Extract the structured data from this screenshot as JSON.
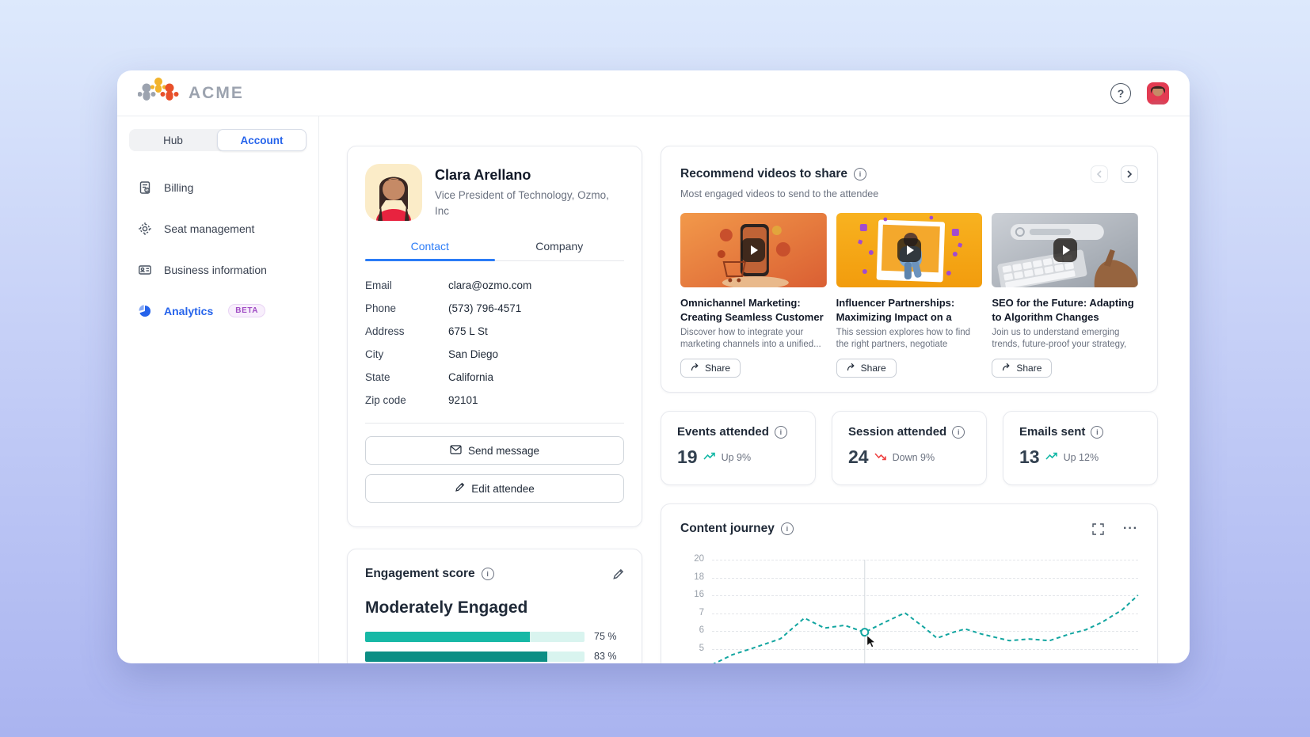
{
  "app": {
    "brand": "ACME"
  },
  "header": {
    "help_label": "?"
  },
  "sidebar": {
    "segments": [
      {
        "label": "Hub",
        "active": false
      },
      {
        "label": "Account",
        "active": true
      }
    ],
    "items": [
      {
        "label": "Billing",
        "icon": "receipt-icon"
      },
      {
        "label": "Seat management",
        "icon": "gear-icon"
      },
      {
        "label": "Business information",
        "icon": "id-card-icon"
      },
      {
        "label": "Analytics",
        "icon": "pie-chart-icon",
        "badge": "BETA",
        "active": true
      }
    ]
  },
  "attendee": {
    "name": "Clara Arellano",
    "title": "Vice President of Technology, Ozmo, Inc",
    "tabs": [
      {
        "label": "Contact",
        "active": true
      },
      {
        "label": "Company",
        "active": false
      }
    ],
    "fields": [
      {
        "label": "Email",
        "value": "clara@ozmo.com"
      },
      {
        "label": "Phone",
        "value": "(573) 796-4571"
      },
      {
        "label": "Address",
        "value": "675 L St"
      },
      {
        "label": "City",
        "value": "San Diego"
      },
      {
        "label": "State",
        "value": "California"
      },
      {
        "label": "Zip code",
        "value": "92101"
      }
    ],
    "actions": {
      "send_message": "Send message",
      "edit_attendee": "Edit attendee"
    }
  },
  "videos": {
    "title": "Recommend videos to share",
    "subtitle": "Most engaged videos to send to the attendee",
    "share_label": "Share",
    "items": [
      {
        "title": "Omnichannel Marketing: Creating Seamless Customer Experiences",
        "description": "Discover how to integrate your marketing channels into a unified..."
      },
      {
        "title": "Influencer Partnerships: Maximizing Impact on a Budget",
        "description": "This session explores how to find the right partners, negotiate smartly..."
      },
      {
        "title": "SEO for the Future: Adapting to Algorithm Changes",
        "description": "Join us to understand emerging trends, future-proof your strategy, and ensure..."
      }
    ]
  },
  "stats": [
    {
      "label": "Events attended",
      "value": "19",
      "trend": "up",
      "trend_label": "Up 9%"
    },
    {
      "label": "Session attended",
      "value": "24",
      "trend": "down",
      "trend_label": "Down 9%"
    },
    {
      "label": "Emails sent",
      "value": "13",
      "trend": "up",
      "trend_label": "Up 12%"
    }
  ],
  "engagement": {
    "title": "Engagement score",
    "level": "Moderately Engaged",
    "bars": [
      {
        "pct": 75,
        "label": "75 %"
      },
      {
        "pct": 83,
        "label": "83 %"
      }
    ]
  },
  "content_journey": {
    "title": "Content journey",
    "menu": "···"
  },
  "chart_data": {
    "type": "line",
    "title": "Content journey",
    "y_tick_labels": [
      "20",
      "18",
      "16",
      "7",
      "6",
      "5"
    ],
    "line_style": "dashed",
    "line_color": "#12a5a0",
    "grid": "dashed-horizontal",
    "legend": "none",
    "highlight_index": 7,
    "points_pct": [
      [
        0,
        99
      ],
      [
        4.7,
        89.5
      ],
      [
        10.3,
        82
      ],
      [
        16,
        74
      ],
      [
        21.6,
        54
      ],
      [
        26.3,
        63.7
      ],
      [
        31,
        61
      ],
      [
        35.7,
        67.7
      ],
      [
        40.4,
        58
      ],
      [
        45.1,
        49
      ],
      [
        49.8,
        63.7
      ],
      [
        52.6,
        73.4
      ],
      [
        56.4,
        67.7
      ],
      [
        59.2,
        64.5
      ],
      [
        63,
        69.4
      ],
      [
        69.5,
        75.8
      ],
      [
        74.2,
        74.2
      ],
      [
        78.9,
        75.8
      ],
      [
        83.6,
        69.4
      ],
      [
        87.4,
        65.3
      ],
      [
        91.2,
        58
      ],
      [
        95.9,
        46
      ],
      [
        99.6,
        32
      ]
    ]
  },
  "colors": {
    "accent_blue": "#2563eb",
    "teal": "#17b8a6",
    "teal_dark": "#0c8e84",
    "trend_red": "#ef4444",
    "beta_purple": "#a04cc4",
    "page_bg_top": "#dde9fc",
    "page_bg_bottom": "#aab4f0"
  }
}
